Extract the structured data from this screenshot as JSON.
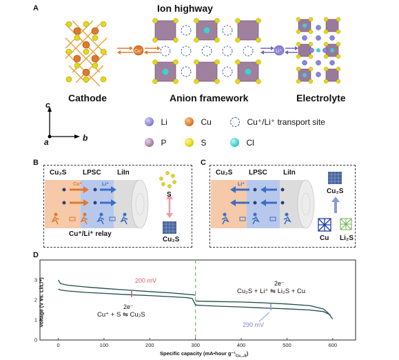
{
  "panelA": {
    "letter": "A",
    "title": "Ion highway",
    "cathode_label": "Cathode",
    "framework_label": "Anion framework",
    "electrolyte_label": "Electrolyte",
    "cu_ion": "Cu⁺",
    "li_ion": "Li⁺",
    "axis_c": "c",
    "axis_a": "a",
    "axis_b": "b",
    "legend": [
      {
        "label": "Li",
        "color": "#8a86d6"
      },
      {
        "label": "Cu",
        "color": "#e07a2a"
      },
      {
        "label": "Cu⁺/Li⁺ transport site",
        "color": "none"
      },
      {
        "label": "P",
        "color": "#a784a6"
      },
      {
        "label": "S",
        "color": "#e6d619"
      },
      {
        "label": "Cl",
        "color": "#3fd0d0"
      }
    ]
  },
  "panelB": {
    "letter": "B",
    "col1": "Cu₂S",
    "col2": "LPSC",
    "col3": "LiIn",
    "cu_plus": "Cu⁺",
    "li_plus": "Li⁺",
    "caption": "Cu⁺/Li⁺ relay",
    "s_label": "S",
    "cu2s_label": "Cu₂S"
  },
  "panelC": {
    "letter": "C",
    "col1": "Cu₂S",
    "col2": "LPSC",
    "col3": "LiIn",
    "li_plus": "Li⁺",
    "cu2s_label": "Cu₂S",
    "cu_label": "Cu",
    "li2s_label": "Li₂S"
  },
  "panelD": {
    "letter": "D",
    "ylabel": "Voltage (V vs. Li/Li⁺)",
    "xlabel": "Specific capacity (mA•hour g⁻¹",
    "xlabel_sub": "Cu₁.₈S",
    "xlabel_end": ")",
    "ann_200": "200 mV",
    "ann_290": "290 mV",
    "eq1_e": "2e⁻",
    "eq1": "Cu₂S + Li⁺ ⇋ Li₂S + Cu",
    "eq2_e": "2e⁻",
    "eq2": "Cu⁺ + S ⇋ Cu₂S"
  },
  "chart_data": {
    "type": "line",
    "x_ticks": [
      0,
      100,
      200,
      300,
      400,
      500,
      600
    ],
    "y_ticks": [
      0,
      1,
      2,
      3
    ],
    "xlim": [
      -40,
      650
    ],
    "ylim": [
      0,
      4
    ],
    "vertical_marker_x": 300,
    "series": [
      {
        "x": [
          0,
          5,
          20,
          60,
          100,
          150,
          200,
          250,
          280,
          293,
          300
        ],
        "y": [
          2.55,
          2.5,
          2.45,
          2.38,
          2.33,
          2.27,
          2.22,
          2.16,
          2.12,
          2.08,
          1.75
        ]
      },
      {
        "x": [
          0,
          5,
          20,
          60,
          100,
          150,
          200,
          250,
          280,
          295,
          300
        ],
        "y": [
          3.0,
          2.82,
          2.74,
          2.65,
          2.58,
          2.5,
          2.42,
          2.35,
          2.29,
          2.26,
          2.24
        ]
      },
      {
        "x": [
          300,
          320,
          350,
          400,
          450,
          500,
          550,
          580,
          595
        ],
        "y": [
          1.75,
          1.72,
          1.69,
          1.65,
          1.6,
          1.56,
          1.5,
          1.42,
          1.25
        ]
      },
      {
        "x": [
          300,
          310,
          350,
          400,
          450,
          500,
          550,
          580,
          590,
          600
        ],
        "y": [
          1.95,
          1.94,
          1.92,
          1.9,
          1.86,
          1.8,
          1.72,
          1.55,
          1.35,
          1.05
        ]
      }
    ]
  }
}
